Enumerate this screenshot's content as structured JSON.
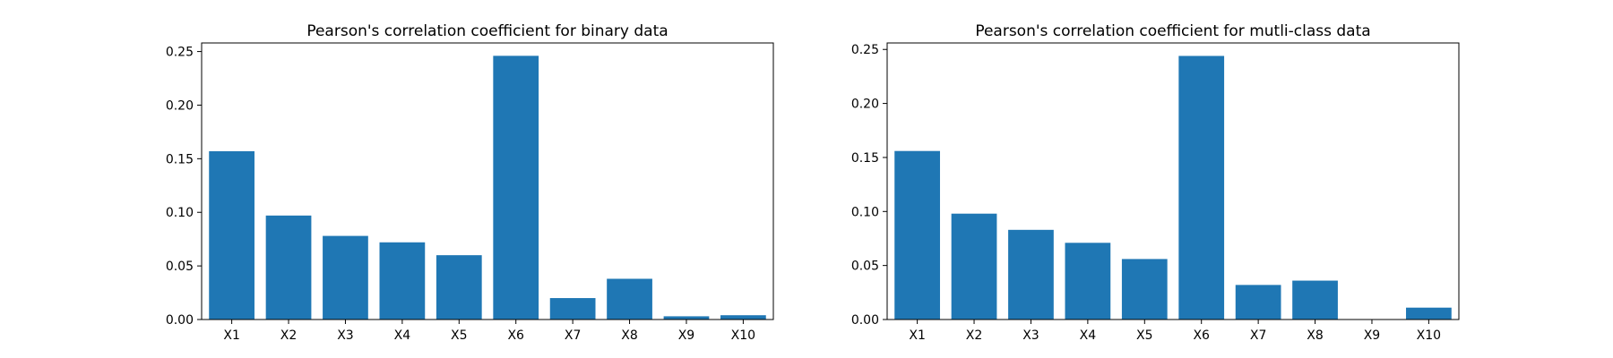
{
  "chart_data": [
    {
      "type": "bar",
      "title": "Pearson's correlation coefficient for binary data",
      "xlabel": "",
      "ylabel": "",
      "categories": [
        "X1",
        "X2",
        "X3",
        "X4",
        "X5",
        "X6",
        "X7",
        "X8",
        "X9",
        "X10"
      ],
      "values": [
        0.157,
        0.097,
        0.078,
        0.072,
        0.06,
        0.246,
        0.02,
        0.038,
        0.003,
        0.004
      ],
      "ylim": [
        0,
        0.258
      ],
      "yticks": [
        "0.00",
        "0.05",
        "0.10",
        "0.15",
        "0.20",
        "0.25"
      ],
      "grid": false,
      "color": "#1f77b4"
    },
    {
      "type": "bar",
      "title": "Pearson's correlation coefficient for mutli-class data",
      "xlabel": "",
      "ylabel": "",
      "categories": [
        "X1",
        "X2",
        "X3",
        "X4",
        "X5",
        "X6",
        "X7",
        "X8",
        "X9",
        "X10"
      ],
      "values": [
        0.156,
        0.098,
        0.083,
        0.071,
        0.056,
        0.244,
        0.032,
        0.036,
        0.0,
        0.011
      ],
      "ylim": [
        0,
        0.256
      ],
      "yticks": [
        "0.00",
        "0.05",
        "0.10",
        "0.15",
        "0.20",
        "0.25"
      ],
      "grid": false,
      "color": "#1f77b4"
    }
  ]
}
